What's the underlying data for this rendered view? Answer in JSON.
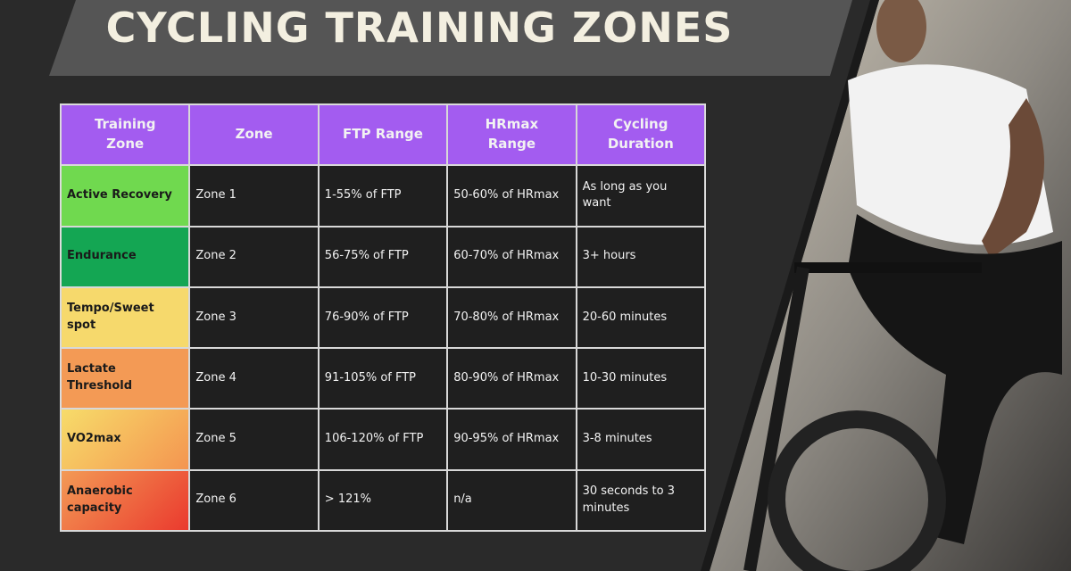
{
  "header": {
    "title": "CYCLING TRAINING ZONES"
  },
  "table": {
    "headers": [
      "Training Zone",
      "Zone",
      "FTP Range",
      "HRmax Range",
      "Cycling Duration"
    ],
    "rows": [
      [
        "Active Recovery",
        "Zone 1",
        "1-55% of FTP",
        "50-60% of HRmax",
        "As long as you want"
      ],
      [
        "Endurance",
        "Zone 2",
        "56-75% of FTP",
        "60-70% of HRmax",
        "3+ hours"
      ],
      [
        "Tempo/Sweet spot",
        "Zone 3",
        "76-90% of FTP",
        "70-80% of HRmax",
        "20-60 minutes"
      ],
      [
        "Lactate Threshold",
        "Zone 4",
        "91-105% of FTP",
        "80-90% of HRmax",
        "10-30 minutes"
      ],
      [
        "VO2max",
        "Zone 5",
        "106-120% of FTP",
        "90-95% of HRmax",
        "3-8 minutes"
      ],
      [
        "Anaerobic capacity",
        "Zone 6",
        "> 121%",
        "n/a",
        "30 seconds to 3 minutes"
      ]
    ]
  }
}
